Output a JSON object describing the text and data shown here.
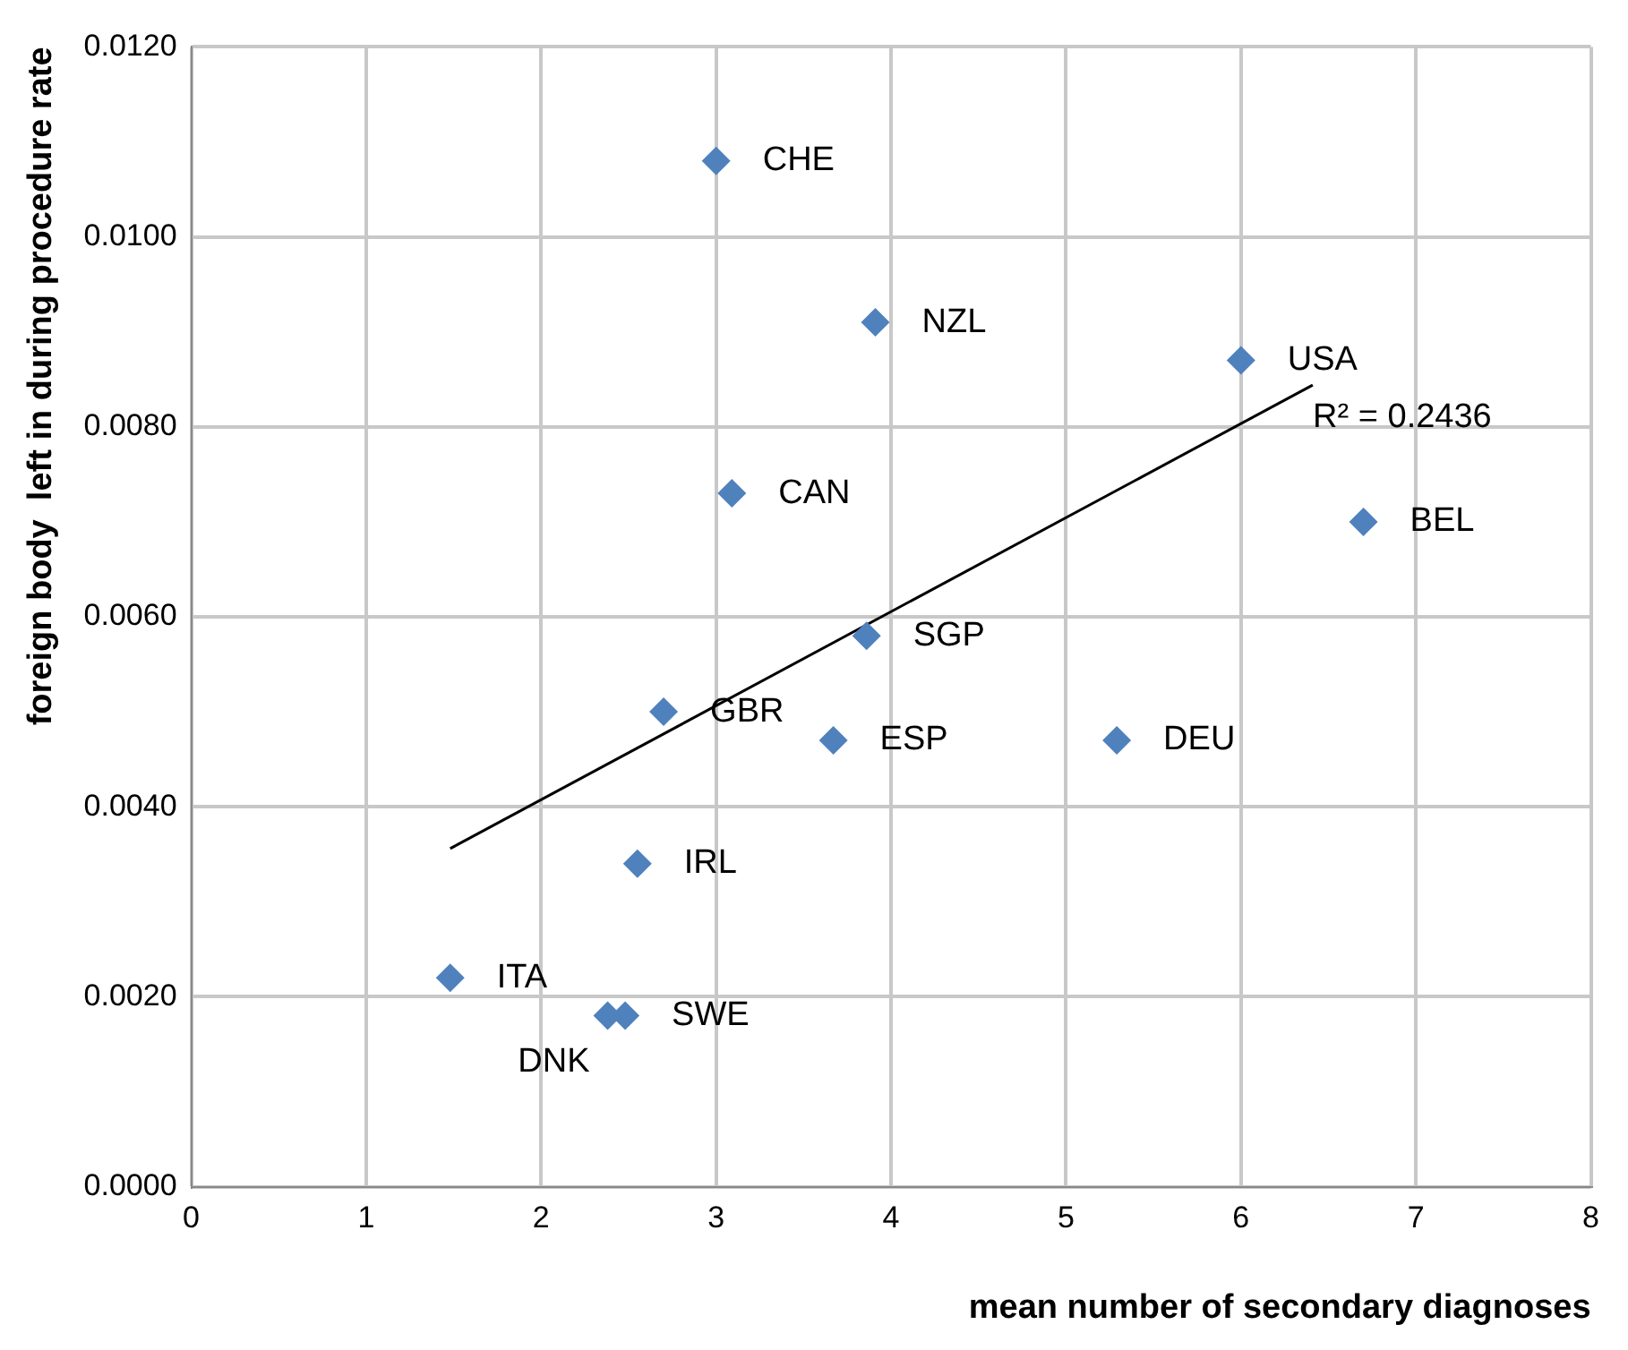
{
  "chart_data": {
    "type": "scatter",
    "xlabel": "mean number of secondary diagnoses",
    "ylabel": "foreign body  left in during procedure rate",
    "xlim": [
      0,
      8
    ],
    "xticks": [
      0,
      1,
      2,
      3,
      4,
      5,
      6,
      7,
      8
    ],
    "ylim": [
      0,
      0.012
    ],
    "yticks": [
      {
        "value": 0,
        "label": "0.0000"
      },
      {
        "value": 0.002,
        "label": "0.0020"
      },
      {
        "value": 0.004,
        "label": "0.0040"
      },
      {
        "value": 0.006,
        "label": "0.0060"
      },
      {
        "value": 0.008,
        "label": "0.0080"
      },
      {
        "value": 0.01,
        "label": "0.0100"
      },
      {
        "value": 0.012,
        "label": "0.0120"
      }
    ],
    "grid": true,
    "legend": false,
    "marker": "diamond",
    "series": [
      {
        "type": "scatter",
        "color": "#4f81bd",
        "x": [
          3.0,
          3.91,
          6.0,
          3.09,
          6.7,
          3.86,
          2.7,
          3.67,
          5.29,
          2.55,
          1.48,
          2.48,
          2.38
        ],
        "values": [
          0.0108,
          0.0091,
          0.0087,
          0.0073,
          0.007,
          0.0058,
          0.005,
          0.0047,
          0.0047,
          0.0034,
          0.0022,
          0.0018,
          0.0018
        ]
      },
      {
        "type": "line",
        "color": "#000000",
        "marker": "none",
        "x": [
          1.48,
          6.41
        ],
        "values": [
          0.00356,
          0.00844
        ]
      }
    ],
    "annotations": [
      {
        "text": "CHE",
        "x": 3.0,
        "y": 0.0108
      },
      {
        "text": "NZL",
        "x": 3.91,
        "y": 0.0091
      },
      {
        "text": "USA",
        "x": 6.0,
        "y": 0.0087
      },
      {
        "text": "CAN",
        "x": 3.09,
        "y": 0.0073
      },
      {
        "text": "BEL",
        "x": 6.7,
        "y": 0.007
      },
      {
        "text": "SGP",
        "x": 3.86,
        "y": 0.0058
      },
      {
        "text": "GBR",
        "x": 2.7,
        "y": 0.005
      },
      {
        "text": "ESP",
        "x": 3.67,
        "y": 0.0047
      },
      {
        "text": "DEU",
        "x": 5.29,
        "y": 0.0047
      },
      {
        "text": "IRL",
        "x": 2.55,
        "y": 0.0034
      },
      {
        "text": "ITA",
        "x": 1.48,
        "y": 0.0022
      },
      {
        "text": "SWE",
        "x": 2.48,
        "y": 0.0018
      },
      {
        "text": "DNK",
        "x": 2.38,
        "y": 0.0018
      },
      "R² = 0.2436"
    ]
  }
}
